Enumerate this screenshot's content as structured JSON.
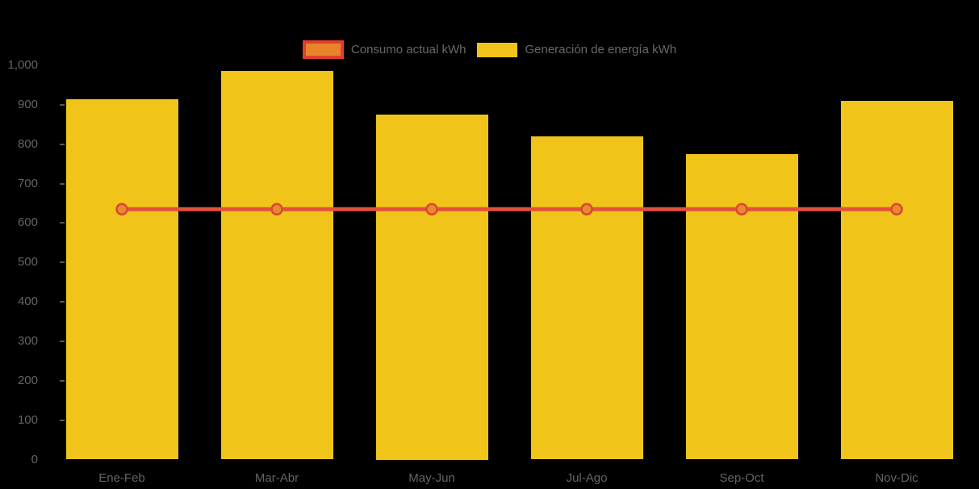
{
  "chart_data": {
    "type": "bar",
    "title": "",
    "xlabel": "",
    "ylabel": "",
    "categories": [
      "Ene-Feb",
      "Mar-Abr",
      "May-Jun",
      "Jul-Ago",
      "Sep-Oct",
      "Nov-Dic"
    ],
    "series": [
      {
        "name": "Consumo actual kWh",
        "type": "line",
        "values": [
          635,
          635,
          635,
          635,
          635,
          635
        ]
      },
      {
        "name": "Generación de energía kWh",
        "type": "bar",
        "values": [
          915,
          985,
          875,
          820,
          775,
          910
        ]
      }
    ],
    "ylim": [
      0,
      1000
    ],
    "y_axis": {
      "ticks": [
        {
          "value": 0,
          "label": "0"
        },
        {
          "value": 100,
          "label": "100"
        },
        {
          "value": 200,
          "label": "200"
        },
        {
          "value": 300,
          "label": "300"
        },
        {
          "value": 400,
          "label": "400"
        },
        {
          "value": 500,
          "label": "500"
        },
        {
          "value": 600,
          "label": "600"
        },
        {
          "value": 700,
          "label": "700"
        },
        {
          "value": 800,
          "label": "800"
        },
        {
          "value": 900,
          "label": "900"
        },
        {
          "value": 1000,
          "label": "1,000"
        }
      ]
    },
    "grid": false,
    "legend_position": "top",
    "colors": {
      "background": "#000000",
      "bar": "#F0C419",
      "line": "#E2503C",
      "marker_fill": "#E78A2F",
      "marker_stroke": "#DC4632",
      "legend_line_swatch_fill": "#E8832C",
      "legend_line_swatch_border": "#E23E2D",
      "axis_label_text": "#646464",
      "legend_text": "#686868"
    }
  }
}
